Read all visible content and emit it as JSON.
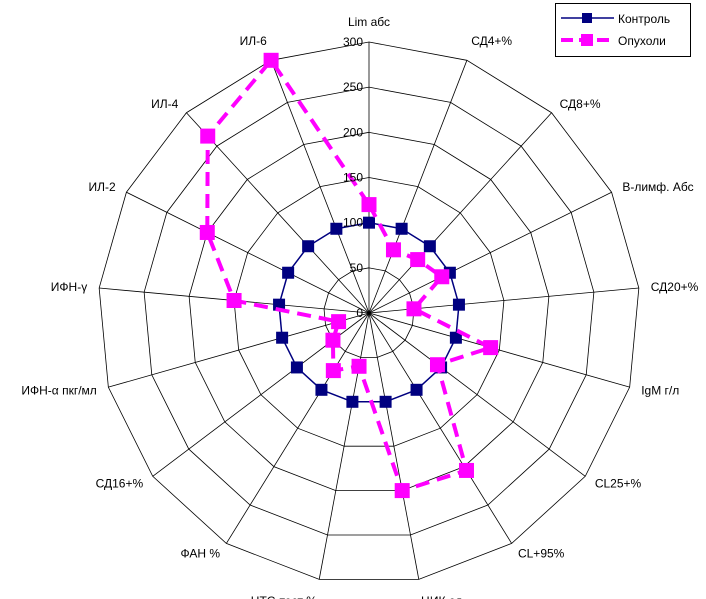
{
  "chart_data": {
    "type": "radar",
    "axes": [
      "Lim абс",
      "СД4+%",
      "СД8+%",
      "В-лимф. Абс",
      "СД20+%",
      "IgM  г/л",
      "CL25+%",
      "CL+95%",
      "ЦИК  ед.",
      "НТС-тест %",
      "ФАН %",
      "СД16+%",
      "ИФН-α пкг/мл",
      "ИФН-γ",
      "ИЛ-2",
      "ИЛ-4",
      "ИЛ-6"
    ],
    "ticks": [
      "0",
      "50",
      "100",
      "150",
      "200",
      "250",
      "300"
    ],
    "rlim": [
      0,
      300
    ],
    "grid": true,
    "legend_position": "top-right",
    "series": [
      {
        "name": "Контроль",
        "color": "#000080",
        "values": [
          100,
          100,
          100,
          100,
          100,
          100,
          100,
          100,
          100,
          100,
          100,
          100,
          100,
          100,
          100,
          100,
          100
        ]
      },
      {
        "name": "Опухоли",
        "color": "#ff00ff",
        "values": [
          120,
          75,
          80,
          90,
          50,
          140,
          95,
          205,
          200,
          60,
          75,
          50,
          35,
          150,
          200,
          265,
          300
        ]
      }
    ]
  }
}
